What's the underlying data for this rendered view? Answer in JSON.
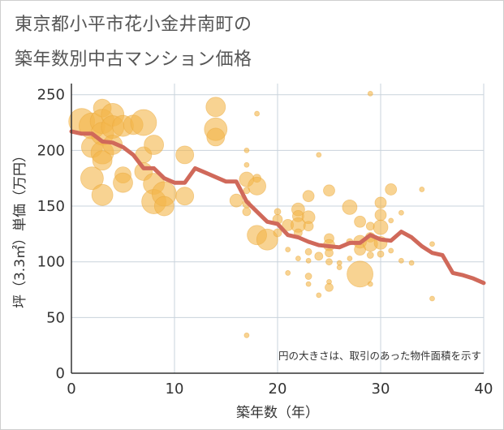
{
  "title_lines": [
    "東京都小平市花小金井南町の",
    "築年数別中古マンション価格"
  ],
  "note": "円の大きさは、取引のあった物件面積を示す",
  "colors": {
    "bubble": "#f3b54a",
    "bubble_opacity": 0.6,
    "line": "#d0695a",
    "grid": "#c9d3dc",
    "plot_bg": "#ffffff"
  },
  "chart_data": {
    "type": "scatter",
    "xlabel": "築年数（年）",
    "ylabel": "坪（3.3㎡）単価（万円）",
    "xlim": [
      0,
      40
    ],
    "ylim": [
      0,
      260
    ],
    "xticks": [
      0,
      10,
      20,
      30,
      40
    ],
    "yticks": [
      0,
      50,
      100,
      150,
      200,
      250
    ],
    "grid": true,
    "bubbles": [
      {
        "x": 1,
        "y": 226,
        "s": 16
      },
      {
        "x": 2,
        "y": 222,
        "s": 16
      },
      {
        "x": 2,
        "y": 203,
        "s": 13
      },
      {
        "x": 2,
        "y": 175,
        "s": 14
      },
      {
        "x": 3,
        "y": 238,
        "s": 11
      },
      {
        "x": 3,
        "y": 226,
        "s": 15
      },
      {
        "x": 3,
        "y": 215,
        "s": 14
      },
      {
        "x": 3,
        "y": 198,
        "s": 14
      },
      {
        "x": 3,
        "y": 191,
        "s": 12
      },
      {
        "x": 3,
        "y": 160,
        "s": 13
      },
      {
        "x": 4,
        "y": 232,
        "s": 14
      },
      {
        "x": 4,
        "y": 221,
        "s": 14
      },
      {
        "x": 4,
        "y": 205,
        "s": 12
      },
      {
        "x": 5,
        "y": 222,
        "s": 13
      },
      {
        "x": 5,
        "y": 178,
        "s": 10
      },
      {
        "x": 5,
        "y": 171,
        "s": 12
      },
      {
        "x": 6,
        "y": 223,
        "s": 12
      },
      {
        "x": 7,
        "y": 225,
        "s": 16
      },
      {
        "x": 7,
        "y": 196,
        "s": 10
      },
      {
        "x": 7,
        "y": 181,
        "s": 11
      },
      {
        "x": 8,
        "y": 205,
        "s": 12
      },
      {
        "x": 8,
        "y": 170,
        "s": 13
      },
      {
        "x": 8,
        "y": 154,
        "s": 15
      },
      {
        "x": 9,
        "y": 161,
        "s": 15
      },
      {
        "x": 9,
        "y": 150,
        "s": 12
      },
      {
        "x": 11,
        "y": 196,
        "s": 11
      },
      {
        "x": 11,
        "y": 159,
        "s": 11
      },
      {
        "x": 14,
        "y": 239,
        "s": 12
      },
      {
        "x": 14,
        "y": 219,
        "s": 14
      },
      {
        "x": 14,
        "y": 212,
        "s": 11
      },
      {
        "x": 16,
        "y": 155,
        "s": 8
      },
      {
        "x": 17,
        "y": 200,
        "s": 3
      },
      {
        "x": 17,
        "y": 187,
        "s": 3
      },
      {
        "x": 17,
        "y": 174,
        "s": 9
      },
      {
        "x": 17,
        "y": 164,
        "s": 4
      },
      {
        "x": 17,
        "y": 152,
        "s": 5
      },
      {
        "x": 17,
        "y": 145,
        "s": 5
      },
      {
        "x": 17,
        "y": 34,
        "s": 3
      },
      {
        "x": 18,
        "y": 233,
        "s": 3
      },
      {
        "x": 18,
        "y": 175,
        "s": 5
      },
      {
        "x": 18,
        "y": 168,
        "s": 11
      },
      {
        "x": 18,
        "y": 124,
        "s": 12
      },
      {
        "x": 19,
        "y": 120,
        "s": 13
      },
      {
        "x": 20,
        "y": 145,
        "s": 4
      },
      {
        "x": 20,
        "y": 138,
        "s": 6
      },
      {
        "x": 20,
        "y": 126,
        "s": 5
      },
      {
        "x": 21,
        "y": 133,
        "s": 7
      },
      {
        "x": 21,
        "y": 111,
        "s": 3
      },
      {
        "x": 21,
        "y": 90,
        "s": 3
      },
      {
        "x": 22,
        "y": 147,
        "s": 8
      },
      {
        "x": 22,
        "y": 141,
        "s": 7
      },
      {
        "x": 22,
        "y": 133,
        "s": 9
      },
      {
        "x": 22,
        "y": 126,
        "s": 5
      },
      {
        "x": 22,
        "y": 103,
        "s": 3
      },
      {
        "x": 23,
        "y": 159,
        "s": 7
      },
      {
        "x": 23,
        "y": 140,
        "s": 8
      },
      {
        "x": 23,
        "y": 132,
        "s": 6
      },
      {
        "x": 23,
        "y": 109,
        "s": 4
      },
      {
        "x": 23,
        "y": 101,
        "s": 3
      },
      {
        "x": 23,
        "y": 87,
        "s": 4
      },
      {
        "x": 23,
        "y": 80,
        "s": 3
      },
      {
        "x": 24,
        "y": 196,
        "s": 3
      },
      {
        "x": 24,
        "y": 105,
        "s": 5
      },
      {
        "x": 24,
        "y": 70,
        "s": 3
      },
      {
        "x": 25,
        "y": 164,
        "s": 7
      },
      {
        "x": 25,
        "y": 121,
        "s": 6
      },
      {
        "x": 25,
        "y": 115,
        "s": 7
      },
      {
        "x": 25,
        "y": 108,
        "s": 5
      },
      {
        "x": 25,
        "y": 100,
        "s": 4
      },
      {
        "x": 25,
        "y": 82,
        "s": 3
      },
      {
        "x": 25,
        "y": 77,
        "s": 5
      },
      {
        "x": 26,
        "y": 99,
        "s": 3
      },
      {
        "x": 26,
        "y": 95,
        "s": 3
      },
      {
        "x": 27,
        "y": 149,
        "s": 9
      },
      {
        "x": 27,
        "y": 118,
        "s": 4
      },
      {
        "x": 27,
        "y": 103,
        "s": 3
      },
      {
        "x": 28,
        "y": 136,
        "s": 7
      },
      {
        "x": 28,
        "y": 118,
        "s": 8
      },
      {
        "x": 28,
        "y": 111,
        "s": 7
      },
      {
        "x": 28,
        "y": 89,
        "s": 16
      },
      {
        "x": 29,
        "y": 251,
        "s": 3
      },
      {
        "x": 29,
        "y": 132,
        "s": 5
      },
      {
        "x": 29,
        "y": 122,
        "s": 6
      },
      {
        "x": 29,
        "y": 116,
        "s": 9
      },
      {
        "x": 29,
        "y": 106,
        "s": 4
      },
      {
        "x": 29,
        "y": 80,
        "s": 3
      },
      {
        "x": 30,
        "y": 153,
        "s": 7
      },
      {
        "x": 30,
        "y": 142,
        "s": 7
      },
      {
        "x": 30,
        "y": 131,
        "s": 9
      },
      {
        "x": 30,
        "y": 117,
        "s": 8
      },
      {
        "x": 30,
        "y": 107,
        "s": 4
      },
      {
        "x": 31,
        "y": 165,
        "s": 7
      },
      {
        "x": 31,
        "y": 137,
        "s": 3
      },
      {
        "x": 31,
        "y": 110,
        "s": 3
      },
      {
        "x": 32,
        "y": 144,
        "s": 3
      },
      {
        "x": 32,
        "y": 101,
        "s": 3
      },
      {
        "x": 33,
        "y": 99,
        "s": 3
      },
      {
        "x": 34,
        "y": 165,
        "s": 3
      },
      {
        "x": 35,
        "y": 116,
        "s": 3
      },
      {
        "x": 35,
        "y": 67,
        "s": 3
      }
    ],
    "trend": {
      "x": [
        0,
        1,
        2,
        3,
        4,
        5,
        6,
        7,
        8,
        9,
        10,
        11,
        12,
        13,
        14,
        15,
        16,
        17,
        18,
        19,
        20,
        21,
        22,
        23,
        24,
        25,
        26,
        27,
        28,
        29,
        30,
        31,
        32,
        33,
        34,
        35,
        36,
        37,
        38,
        39,
        40
      ],
      "y": [
        217,
        215,
        215,
        208,
        207,
        203,
        196,
        184,
        184,
        175,
        171,
        171,
        184,
        180,
        176,
        172,
        172,
        154,
        145,
        136,
        134,
        124,
        122,
        118,
        115,
        114,
        113,
        117,
        117,
        124,
        120,
        119,
        127,
        122,
        114,
        108,
        106,
        90,
        88,
        85,
        81
      ]
    }
  }
}
